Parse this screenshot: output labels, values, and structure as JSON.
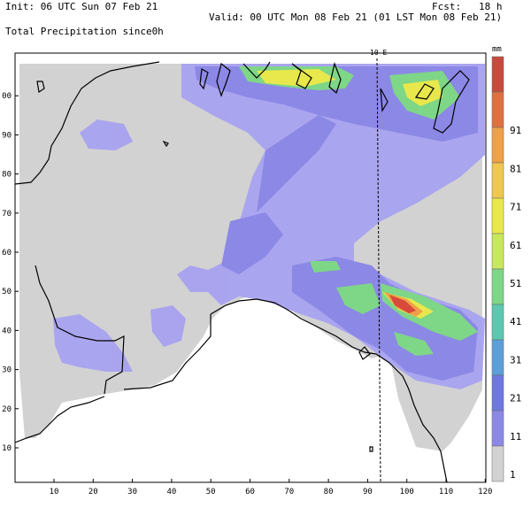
{
  "header": {
    "init": "Init: 06 UTC Sun 07 Feb 21",
    "fcst": "Fcst:   18 h",
    "valid": "Valid: 00 UTC Mon 08 Feb 21 (01 LST Mon 08 Feb 21)",
    "field": "Total Precipitation since0h"
  },
  "map": {
    "meridian_label": "10 E",
    "x_ticks": [
      "10",
      "20",
      "30",
      "40",
      "50",
      "60",
      "70",
      "80",
      "90",
      "100",
      "110",
      "120"
    ],
    "y_ticks": [
      "10",
      "20",
      "30",
      "40",
      "50",
      "60",
      "70",
      "80",
      "90",
      "00"
    ],
    "colors": {
      "domain_gray": "#d2d2d2",
      "light_purple": "#a8a2f0",
      "purple": "#8c88e6",
      "green": "#7ed687",
      "yellow": "#e8e84c",
      "orange": "#f0b040",
      "red": "#d84a3c"
    }
  },
  "legend": {
    "unit": "mm",
    "labels": [
      "1",
      "11",
      "21",
      "31",
      "41",
      "51",
      "61",
      "71",
      "81",
      "91"
    ],
    "colors": [
      "#d2d2d2",
      "#8c88e6",
      "#6f78e0",
      "#5c9ed8",
      "#5cc8b0",
      "#7ed687",
      "#c8e85c",
      "#e8e84c",
      "#f0c850",
      "#f0a048",
      "#e07040",
      "#c84a3c"
    ]
  }
}
